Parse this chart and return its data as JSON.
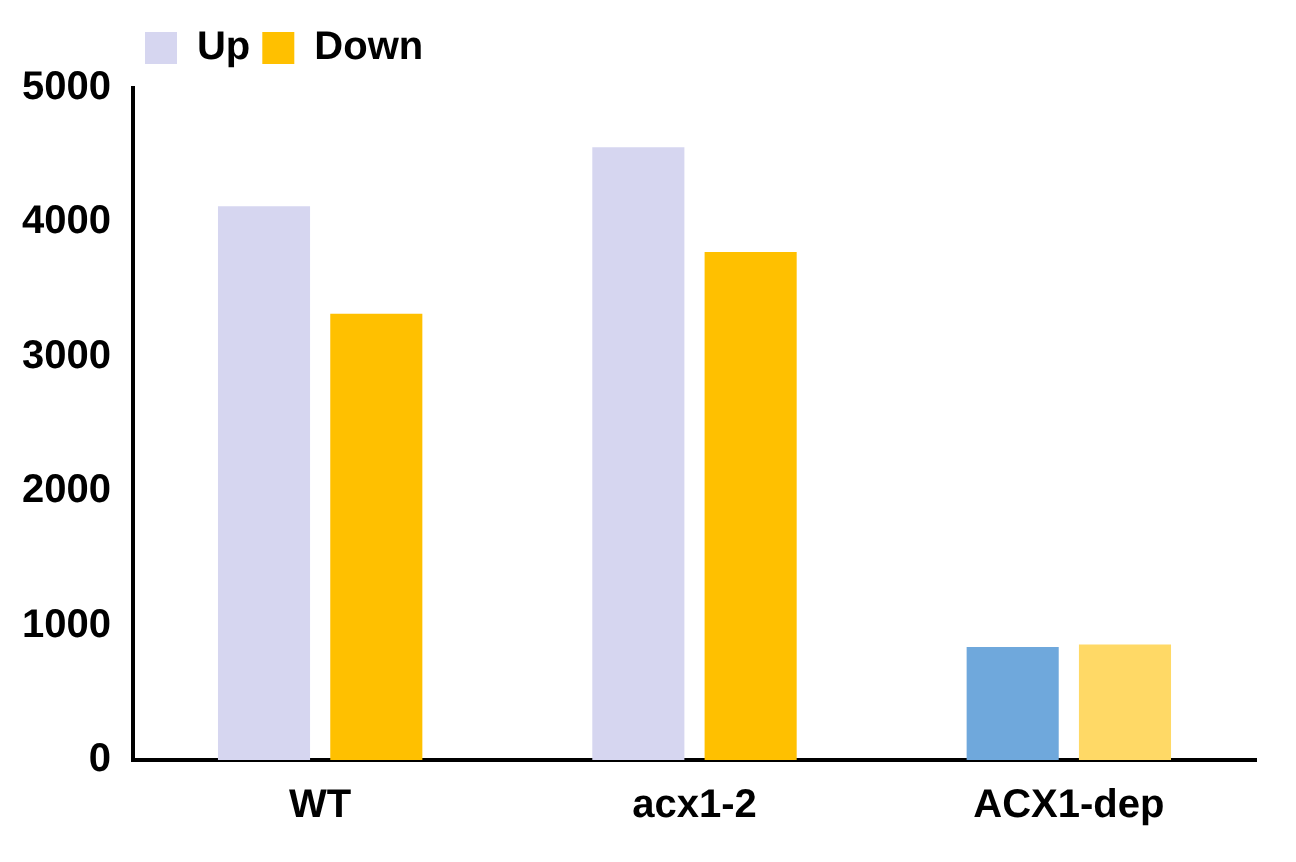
{
  "chart_data": {
    "type": "bar",
    "categories": [
      "WT",
      "acx1-2",
      "ACX1-dep"
    ],
    "series": [
      {
        "name": "Up",
        "color": "#d6d6f0",
        "colors": [
          "#d6d6f0",
          "#d6d6f0",
          "#6fa8dc"
        ],
        "values": [
          4120,
          4560,
          840
        ]
      },
      {
        "name": "Down",
        "color": "#ffc000",
        "colors": [
          "#ffc000",
          "#ffc000",
          "#ffd966"
        ],
        "values": [
          3320,
          3780,
          860
        ]
      }
    ],
    "ylim": [
      0,
      5000
    ],
    "yticks": [
      0,
      1000,
      2000,
      3000,
      4000,
      5000
    ],
    "grid": false,
    "legend": "top left"
  }
}
